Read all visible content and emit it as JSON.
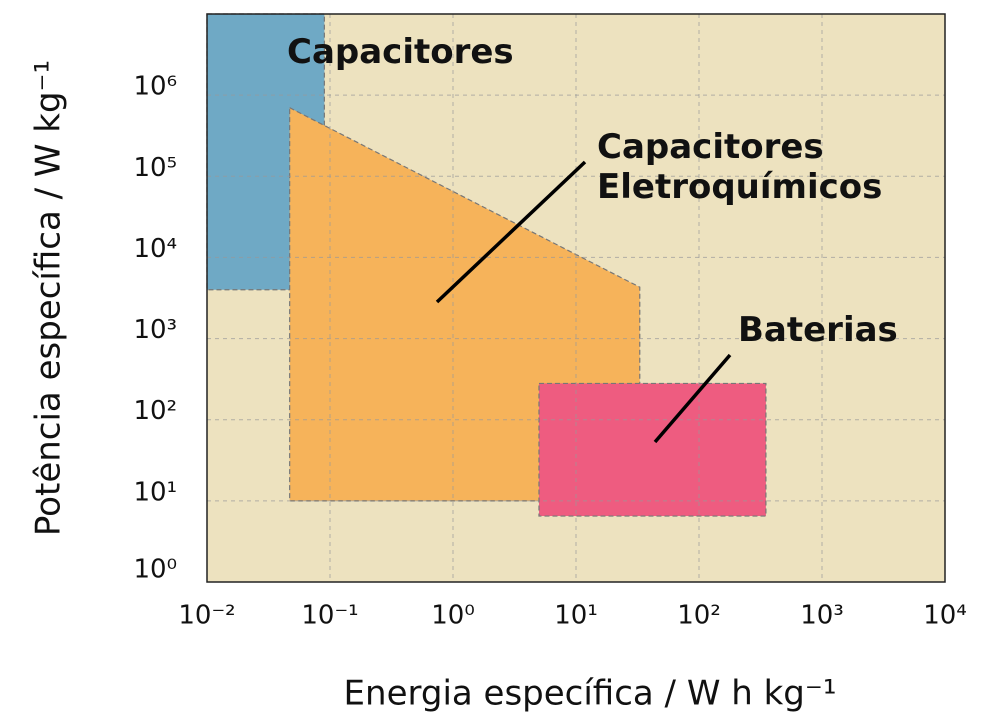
{
  "chart_data": {
    "type": "polygon",
    "xlabel": "Energia específica / W h kg⁻¹",
    "ylabel": "Potência específica / W kg⁻¹",
    "xscale": "log",
    "yscale": "log",
    "xlim": [
      0.01,
      10000
    ],
    "ylim": [
      1,
      10000000
    ],
    "xticks": [
      {
        "value": 0.01,
        "label": "10⁻²"
      },
      {
        "value": 0.1,
        "label": "10⁻¹"
      },
      {
        "value": 1,
        "label": "10⁰"
      },
      {
        "value": 10,
        "label": "10¹"
      },
      {
        "value": 100,
        "label": "10²"
      },
      {
        "value": 1000,
        "label": "10³"
      },
      {
        "value": 10000,
        "label": "10⁴"
      }
    ],
    "yticks": [
      {
        "value": 1,
        "label": "10⁰"
      },
      {
        "value": 10,
        "label": "10¹"
      },
      {
        "value": 100,
        "label": "10²"
      },
      {
        "value": 1000,
        "label": "10³"
      },
      {
        "value": 10000,
        "label": "10⁴"
      },
      {
        "value": 100000,
        "label": "10⁵"
      },
      {
        "value": 1000000,
        "label": "10⁶"
      }
    ],
    "grid": true,
    "background": "#ede2bf",
    "series": [
      {
        "name": "Capacitores",
        "color": "#6fa9c5",
        "x": [
          0.01,
          0.09,
          0.09,
          0.01
        ],
        "y": [
          10000000,
          10000000,
          4000,
          4000
        ]
      },
      {
        "name": "Capacitores\nEletroquímicos",
        "color": "#f6b35a",
        "x": [
          0.047,
          33,
          33,
          0.047
        ],
        "y": [
          700000,
          4300,
          10,
          10
        ]
      },
      {
        "name": "Baterias",
        "color": "#ee5c80",
        "x": [
          5,
          350,
          350,
          5
        ],
        "y": [
          280,
          280,
          6.5,
          6.5
        ]
      }
    ]
  }
}
